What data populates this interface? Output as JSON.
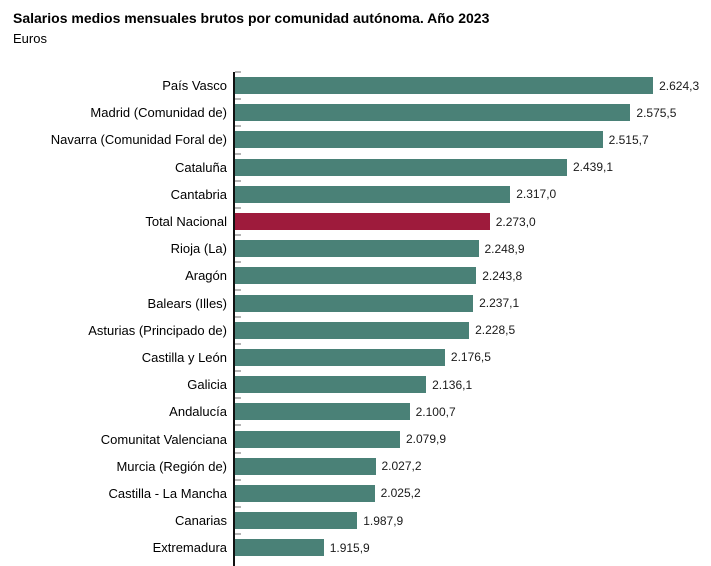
{
  "header": {
    "title": "Salarios medios mensuales brutos por comunidad autónoma. Año 2023",
    "subtitle": "Euros"
  },
  "chart_data": {
    "type": "bar",
    "orientation": "horizontal",
    "title": "Salarios medios mensuales brutos por comunidad autónoma. Año 2023",
    "unit": "Euros",
    "xlabel": "",
    "ylabel": "",
    "grid": false,
    "legend": null,
    "xlim": [
      1725,
      2650
    ],
    "categories": [
      "País Vasco",
      "Madrid (Comunidad de)",
      "Navarra (Comunidad Foral de)",
      "Cataluña",
      "Cantabria",
      "Total Nacional",
      "Rioja (La)",
      "Aragón",
      "Balears (Illes)",
      "Asturias (Principado de)",
      "Castilla y León",
      "Galicia",
      "Andalucía",
      "Comunitat Valenciana",
      "Murcia (Región de)",
      "Castilla - La Mancha",
      "Canarias",
      "Extremadura"
    ],
    "values": [
      2624.3,
      2575.5,
      2515.7,
      2439.1,
      2317.0,
      2273.0,
      2248.9,
      2243.8,
      2237.1,
      2228.5,
      2176.5,
      2136.1,
      2100.7,
      2079.9,
      2027.2,
      2025.2,
      1987.9,
      1915.9
    ],
    "value_labels": [
      "2.624,3",
      "2.575,5",
      "2.515,7",
      "2.439,1",
      "2.317,0",
      "2.273,0",
      "2.248,9",
      "2.243,8",
      "2.237,1",
      "2.228,5",
      "2.176,5",
      "2.136,1",
      "2.100,7",
      "2.079,9",
      "2.027,2",
      "2.025,2",
      "1.987,9",
      "1.915,9"
    ],
    "highlight_category": "Total Nacional",
    "highlight_index": 5,
    "colors": {
      "bar": "#4a8177",
      "highlight": "#9e1b3c",
      "axis": "#111111",
      "tick": "#b5b5b5",
      "text": "#000000"
    }
  }
}
